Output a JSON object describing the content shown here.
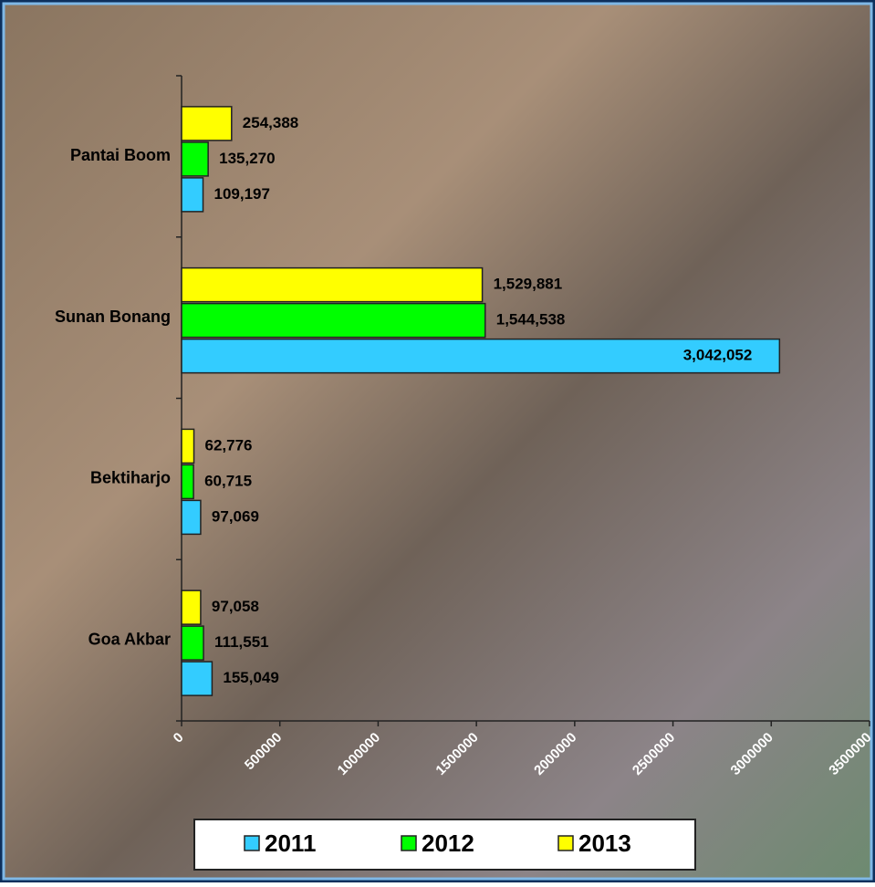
{
  "chart_data": {
    "type": "bar",
    "orientation": "horizontal",
    "categories": [
      "Goa Akbar",
      "Bektiharjo",
      "Sunan Bonang",
      "Pantai Boom"
    ],
    "series": [
      {
        "name": "2011",
        "color": "#33ccff",
        "values": [
          155049,
          97069,
          3042052,
          109197
        ],
        "value_labels": [
          "155,049",
          "97,069",
          "3,042,052",
          "109,197"
        ]
      },
      {
        "name": "2012",
        "color": "#00ff00",
        "values": [
          111551,
          60715,
          1544538,
          135270
        ],
        "value_labels": [
          "111,551",
          "60,715",
          "1,544,538",
          "135,270"
        ]
      },
      {
        "name": "2013",
        "color": "#ffff00",
        "values": [
          97058,
          62776,
          1529881,
          254388
        ],
        "value_labels": [
          "97,058",
          "62,776",
          "1,529,881",
          "254,388"
        ]
      }
    ],
    "xlim": [
      0,
      3500000
    ],
    "xticks": [
      0,
      500000,
      1000000,
      1500000,
      2000000,
      2500000,
      3000000,
      3500000
    ],
    "legend": "bottom"
  }
}
